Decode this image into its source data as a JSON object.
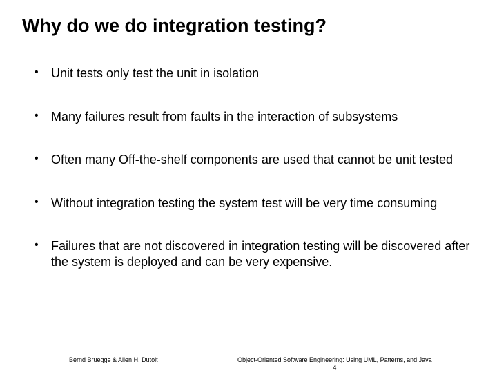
{
  "title": "Why do we do integration testing?",
  "bullets": [
    "Unit tests only test the unit in isolation",
    "Many failures result from faults in the interaction of subsystems",
    "Often many Off-the-shelf components are used that cannot be unit tested",
    "Without integration testing the system test will be very time consuming",
    "Failures that are not discovered in integration testing will be discovered after the system is deployed and can be very expensive."
  ],
  "footer": {
    "left": "Bernd Bruegge & Allen H. Dutoit",
    "right": "Object-Oriented Software Engineering: Using UML, Patterns, and Java",
    "page": "4"
  },
  "style": {
    "background": "#ffffff",
    "text_color": "#000000",
    "title_fontsize": 27,
    "bullet_fontsize": 18,
    "footer_fontsize": 9
  }
}
